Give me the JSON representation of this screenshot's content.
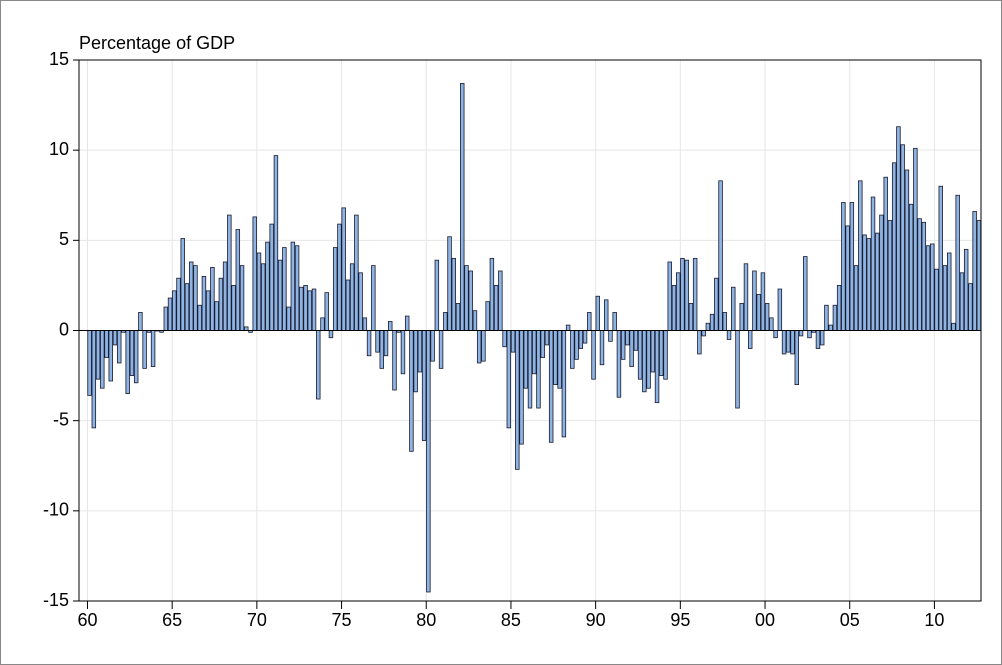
{
  "chart_data": {
    "type": "bar",
    "title": "Percentage of GDP",
    "x": [
      1960,
      1960.25,
      1960.5,
      1960.75,
      1961,
      1961.25,
      1961.5,
      1961.75,
      1962,
      1962.25,
      1962.5,
      1962.75,
      1963,
      1963.25,
      1963.5,
      1963.75,
      1964,
      1964.25,
      1964.5,
      1964.75,
      1965,
      1965.25,
      1965.5,
      1965.75,
      1966,
      1966.25,
      1966.5,
      1966.75,
      1967,
      1967.25,
      1967.5,
      1967.75,
      1968,
      1968.25,
      1968.5,
      1968.75,
      1969,
      1969.25,
      1969.5,
      1969.75,
      1970,
      1970.25,
      1970.5,
      1970.75,
      1971,
      1971.25,
      1971.5,
      1971.75,
      1972,
      1972.25,
      1972.5,
      1972.75,
      1973,
      1973.25,
      1973.5,
      1973.75,
      1974,
      1974.25,
      1974.5,
      1974.75,
      1975,
      1975.25,
      1975.5,
      1975.75,
      1976,
      1976.25,
      1976.5,
      1976.75,
      1977,
      1977.25,
      1977.5,
      1977.75,
      1978,
      1978.25,
      1978.5,
      1978.75,
      1979,
      1979.25,
      1979.5,
      1979.75,
      1980,
      1980.25,
      1980.5,
      1980.75,
      1981,
      1981.25,
      1981.5,
      1981.75,
      1982,
      1982.25,
      1982.5,
      1982.75,
      1983,
      1983.25,
      1983.5,
      1983.75,
      1984,
      1984.25,
      1984.5,
      1984.75,
      1985,
      1985.25,
      1985.5,
      1985.75,
      1986,
      1986.25,
      1986.5,
      1986.75,
      1987,
      1987.25,
      1987.5,
      1987.75,
      1988,
      1988.25,
      1988.5,
      1988.75,
      1989,
      1989.25,
      1989.5,
      1989.75,
      1990,
      1990.25,
      1990.5,
      1990.75,
      1991,
      1991.25,
      1991.5,
      1991.75,
      1992,
      1992.25,
      1992.5,
      1992.75,
      1993,
      1993.25,
      1993.5,
      1993.75,
      1994,
      1994.25,
      1994.5,
      1994.75,
      1995,
      1995.25,
      1995.5,
      1995.75,
      1996,
      1996.25,
      1996.5,
      1996.75,
      1997,
      1997.25,
      1997.5,
      1997.75,
      1998,
      1998.25,
      1998.5,
      1998.75,
      1999,
      1999.25,
      1999.5,
      1999.75,
      2000,
      2000.25,
      2000.5,
      2000.75,
      2001,
      2001.25,
      2001.5,
      2001.75,
      2002,
      2002.25,
      2002.5,
      2002.75,
      2003,
      2003.25,
      2003.5,
      2003.75,
      2004,
      2004.25,
      2004.5,
      2004.75,
      2005,
      2005.25,
      2005.5,
      2005.75,
      2006,
      2006.25,
      2006.5,
      2006.75,
      2007,
      2007.25,
      2007.5,
      2007.75,
      2008,
      2008.25,
      2008.5,
      2008.75,
      2009,
      2009.25,
      2009.5,
      2009.75,
      2010,
      2010.25,
      2010.5,
      2010.75,
      2011,
      2011.25,
      2011.5,
      2011.75,
      2012,
      2012.25,
      2012.5
    ],
    "values": [
      -3.6,
      -5.4,
      -2.7,
      -3.2,
      -1.5,
      -2.8,
      -0.8,
      -1.8,
      -0.1,
      -3.5,
      -2.5,
      -2.9,
      1.0,
      -2.1,
      -0.1,
      -2.0,
      0.0,
      -0.1,
      1.3,
      1.8,
      2.2,
      2.9,
      5.1,
      2.6,
      3.8,
      3.6,
      1.4,
      3.0,
      2.2,
      3.5,
      1.6,
      2.9,
      3.8,
      6.4,
      2.5,
      5.6,
      3.6,
      0.2,
      -0.1,
      6.3,
      4.3,
      3.7,
      4.9,
      5.9,
      9.7,
      3.9,
      4.6,
      1.3,
      4.9,
      4.7,
      2.4,
      2.5,
      2.2,
      2.3,
      -3.8,
      0.7,
      2.1,
      -0.4,
      4.6,
      5.9,
      6.8,
      2.8,
      3.7,
      6.4,
      3.2,
      0.7,
      -1.4,
      3.6,
      -1.2,
      -2.1,
      -1.4,
      0.5,
      -3.3,
      -0.1,
      -2.4,
      0.8,
      -6.7,
      -3.4,
      -2.3,
      -6.1,
      -14.5,
      -1.7,
      3.9,
      -2.1,
      1.0,
      5.2,
      4.0,
      1.5,
      13.7,
      3.6,
      3.3,
      1.1,
      -1.8,
      -1.7,
      1.6,
      4.0,
      2.5,
      3.3,
      -0.9,
      -5.4,
      -1.2,
      -7.7,
      -6.3,
      -3.2,
      -4.3,
      -2.4,
      -4.3,
      -1.5,
      -0.8,
      -6.2,
      -3.0,
      -3.2,
      -5.9,
      0.3,
      -2.1,
      -1.6,
      -1.0,
      -0.7,
      1.0,
      -2.7,
      1.9,
      -1.9,
      1.7,
      -0.6,
      1.0,
      -3.7,
      -1.6,
      -0.8,
      -2.0,
      -1.1,
      -2.7,
      -3.4,
      -3.2,
      -2.3,
      -4.0,
      -2.5,
      -2.7,
      3.8,
      2.5,
      3.2,
      4.0,
      3.9,
      1.5,
      4.0,
      -1.3,
      -0.3,
      0.4,
      0.9,
      2.9,
      8.3,
      1.0,
      -0.5,
      2.4,
      -4.3,
      1.5,
      3.7,
      -1.0,
      3.3,
      2.0,
      3.2,
      1.5,
      0.7,
      -0.4,
      2.3,
      -1.3,
      -1.2,
      -1.3,
      -3.0,
      -0.3,
      4.1,
      -0.4,
      -0.1,
      -1.0,
      -0.8,
      1.4,
      0.3,
      1.4,
      2.5,
      7.1,
      5.8,
      7.1,
      3.6,
      8.3,
      5.3,
      5.1,
      7.4,
      5.4,
      6.4,
      8.5,
      6.1,
      9.3,
      11.3,
      10.3,
      8.9,
      7.0,
      10.1,
      6.2,
      6.0,
      4.7,
      4.8,
      3.4,
      8.0,
      3.6,
      4.3,
      0.4,
      7.5,
      3.2,
      4.5,
      2.6,
      6.6,
      6.1
    ],
    "color": "#8db4e2",
    "xlim": [
      1959.5,
      2012.75
    ],
    "xticks": [
      {
        "value": 1960,
        "label": "60"
      },
      {
        "value": 1965,
        "label": "65"
      },
      {
        "value": 1970,
        "label": "70"
      },
      {
        "value": 1975,
        "label": "75"
      },
      {
        "value": 1980,
        "label": "80"
      },
      {
        "value": 1985,
        "label": "85"
      },
      {
        "value": 1990,
        "label": "90"
      },
      {
        "value": 1995,
        "label": "95"
      },
      {
        "value": 2000,
        "label": "00"
      },
      {
        "value": 2005,
        "label": "05"
      },
      {
        "value": 2010,
        "label": "10"
      }
    ],
    "ylim": [
      -15,
      15
    ],
    "yticks": [
      -15,
      -10,
      -5,
      0,
      5,
      10,
      15
    ],
    "grid": true
  }
}
